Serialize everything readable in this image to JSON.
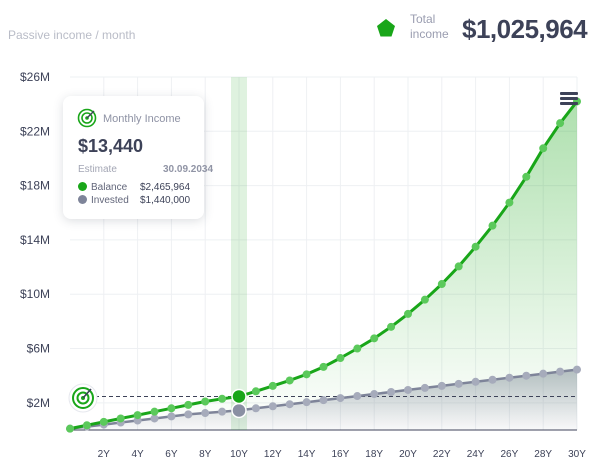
{
  "header": {
    "subtitle": "Passive income / month",
    "total_label": "Total income",
    "total_value": "$1,025,964",
    "total_icon": "pentagon-icon",
    "accent": "#19a619"
  },
  "menu": {
    "icon": "hamburger-menu-icon"
  },
  "tooltip": {
    "icon": "target-icon",
    "title": "Monthly Income",
    "amount": "$13,440",
    "estimate_label": "Estimate",
    "estimate_date": "30.09.2034",
    "balance_label": "Balance",
    "balance_value": "$2,465,964",
    "invested_label": "Invested",
    "invested_value": "$1,440,000"
  },
  "chart_data": {
    "type": "area",
    "x": [
      0,
      1,
      2,
      3,
      4,
      5,
      6,
      7,
      8,
      9,
      10,
      11,
      12,
      13,
      14,
      15,
      16,
      17,
      18,
      19,
      20,
      21,
      22,
      23,
      24,
      25,
      26,
      27,
      28,
      29,
      30
    ],
    "xtick_labels": [
      "2Y",
      "4Y",
      "6Y",
      "8Y",
      "10Y",
      "12Y",
      "14Y",
      "16Y",
      "18Y",
      "20Y",
      "22Y",
      "24Y",
      "26Y",
      "28Y",
      "30Y"
    ],
    "xtick_values": [
      2,
      4,
      6,
      8,
      10,
      12,
      14,
      16,
      18,
      20,
      22,
      24,
      26,
      28,
      30
    ],
    "ytick_labels": [
      "$2M",
      "$6M",
      "$10M",
      "$14M",
      "$18M",
      "$22M",
      "$26M"
    ],
    "ytick_values": [
      2,
      6,
      10,
      14,
      18,
      22,
      26
    ],
    "ylim": [
      0,
      26
    ],
    "xlim": [
      0,
      30
    ],
    "series": [
      {
        "name": "Balance",
        "color": "#19a619",
        "values": [
          0.1,
          0.35,
          0.6,
          0.85,
          1.1,
          1.35,
          1.6,
          1.85,
          2.1,
          2.3,
          2.47,
          2.85,
          3.25,
          3.65,
          4.1,
          4.65,
          5.3,
          6.0,
          6.75,
          7.6,
          8.55,
          9.6,
          10.75,
          12.05,
          13.5,
          15.05,
          16.75,
          18.65,
          20.75,
          22.6,
          24.2
        ]
      },
      {
        "name": "Invested",
        "color": "#7e8499",
        "values": [
          0.1,
          0.25,
          0.4,
          0.55,
          0.7,
          0.85,
          1.0,
          1.15,
          1.25,
          1.35,
          1.44,
          1.6,
          1.75,
          1.9,
          2.05,
          2.2,
          2.35,
          2.5,
          2.65,
          2.8,
          2.95,
          3.1,
          3.25,
          3.4,
          3.55,
          3.7,
          3.85,
          4.0,
          4.15,
          4.3,
          4.45
        ]
      }
    ],
    "highlight_x": 10,
    "baseline_value": 2.465964
  }
}
